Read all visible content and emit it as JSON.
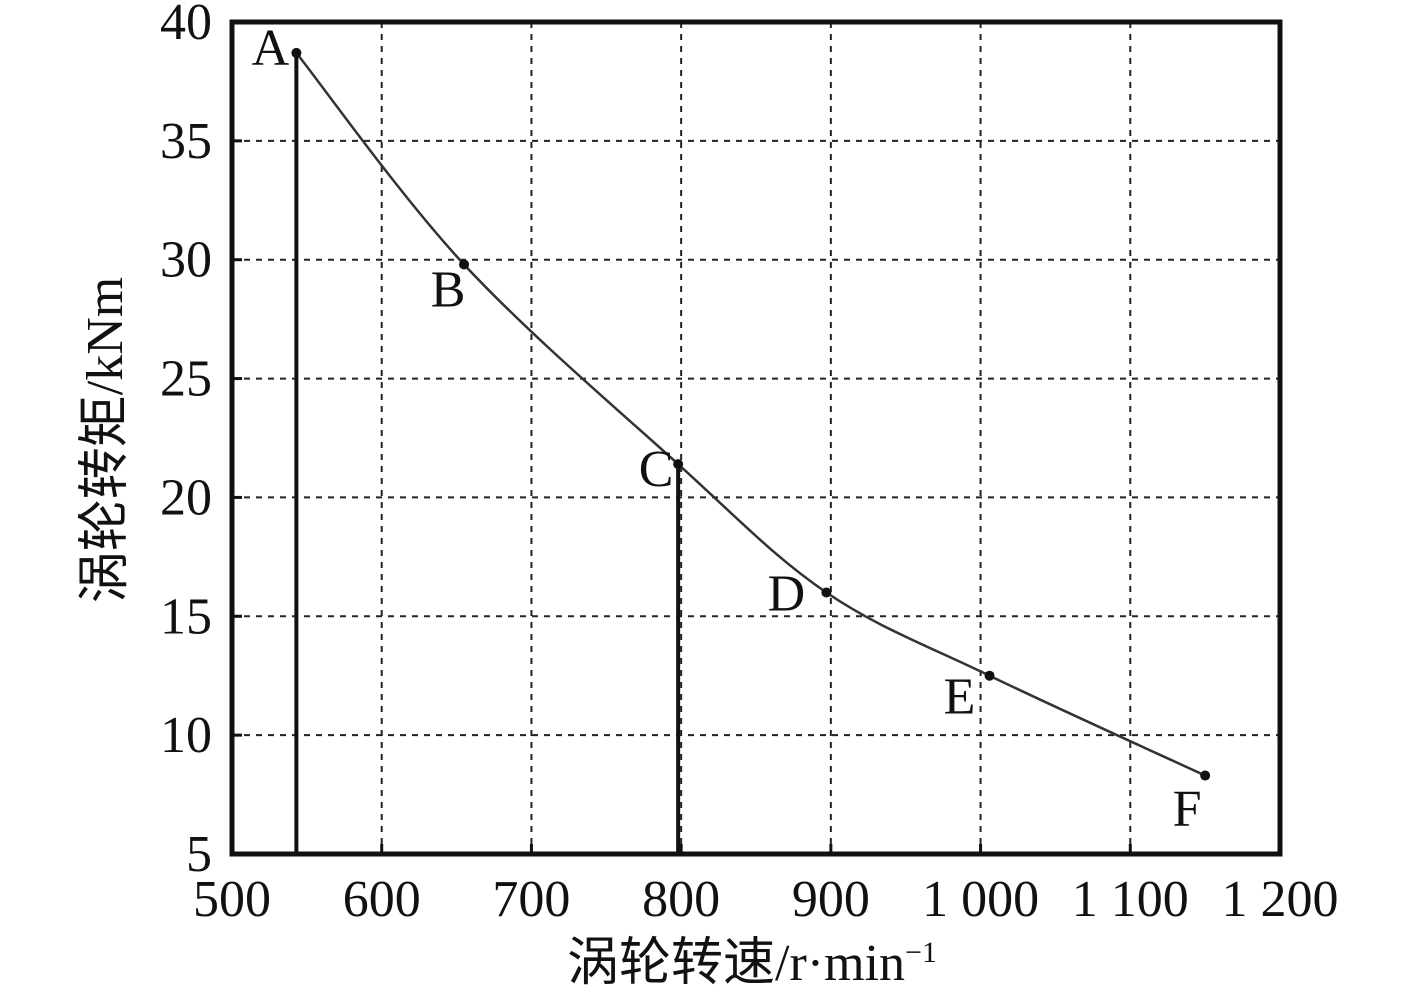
{
  "chart_data": {
    "type": "line",
    "title": "",
    "xlabel": "涡轮转速/r·min",
    "xlabel_sup": "−1",
    "ylabel": "涡轮转矩/kNm",
    "xlim": [
      500,
      1200
    ],
    "ylim": [
      5,
      40
    ],
    "x_ticks": [
      500,
      600,
      700,
      800,
      900,
      1000,
      1100,
      1200
    ],
    "x_tick_labels": [
      "500",
      "600",
      "700",
      "800",
      "900",
      "1 000",
      "1 100",
      "1 200"
    ],
    "y_ticks": [
      5,
      10,
      15,
      20,
      25,
      30,
      35,
      40
    ],
    "y_tick_labels": [
      "5",
      "10",
      "15",
      "20",
      "25",
      "30",
      "35",
      "40"
    ],
    "grid": true,
    "legend": "none",
    "series": [
      {
        "points": [
          {
            "label": "A",
            "x": 543,
            "y": 38.7
          },
          {
            "label": "B",
            "x": 655,
            "y": 29.8
          },
          {
            "label": "C",
            "x": 798,
            "y": 21.4
          },
          {
            "label": "D",
            "x": 897,
            "y": 16.0
          },
          {
            "label": "E",
            "x": 1006,
            "y": 12.5
          },
          {
            "label": "F",
            "x": 1150,
            "y": 8.3
          }
        ]
      }
    ],
    "vertical_lines": [
      {
        "at_point": "A",
        "x": 543,
        "y_from": 5,
        "y_to": 38.7
      },
      {
        "at_point": "C",
        "x": 798,
        "y_from": 5,
        "y_to": 21.4
      }
    ]
  }
}
